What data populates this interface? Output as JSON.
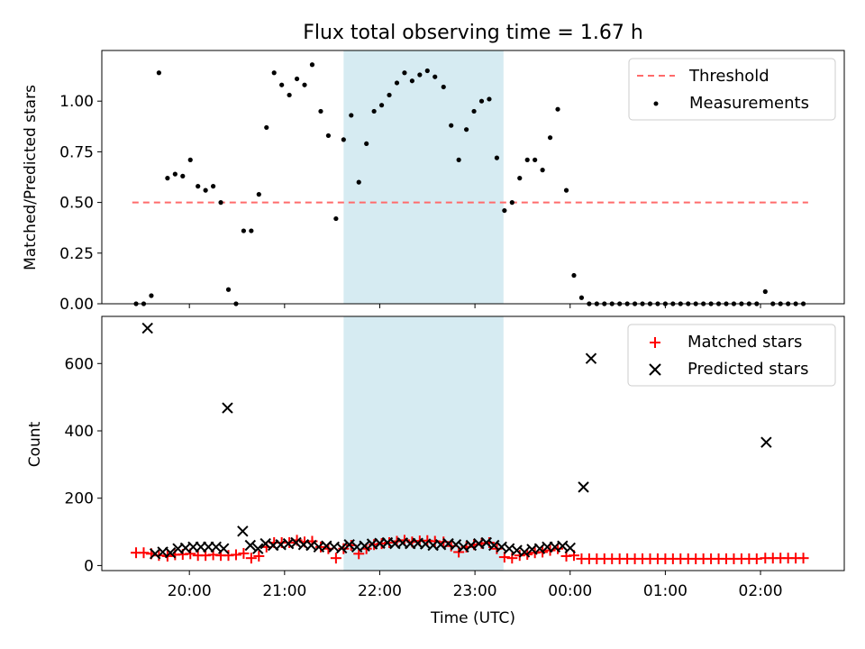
{
  "chart_data": [
    {
      "type": "scatter",
      "title": "Flux total observing time = 1.67 h",
      "xlabel": "",
      "ylabel": "Matched/Predicted stars",
      "xlim_hours": [
        19.08,
        26.88
      ],
      "ylim": [
        0,
        1.25
      ],
      "yticks": [
        0.0,
        0.25,
        0.5,
        0.75,
        1.0
      ],
      "ytick_labels": [
        "0.00",
        "0.25",
        "0.50",
        "0.75",
        "1.00"
      ],
      "shaded_interval": {
        "x0": 21.62,
        "x1": 23.3,
        "color": "#add8e6"
      },
      "threshold": {
        "name": "Threshold",
        "value": 0.5,
        "x_range": [
          19.4,
          26.5
        ],
        "color": "#ff6b6b"
      },
      "series": [
        {
          "name": "Measurements",
          "color": "#000000",
          "points": [
            [
              19.44,
              0.0
            ],
            [
              19.52,
              0.0
            ],
            [
              19.6,
              0.04
            ],
            [
              19.68,
              1.14
            ],
            [
              19.77,
              0.62
            ],
            [
              19.85,
              0.64
            ],
            [
              19.93,
              0.63
            ],
            [
              20.01,
              0.71
            ],
            [
              20.09,
              0.58
            ],
            [
              20.17,
              0.56
            ],
            [
              20.25,
              0.58
            ],
            [
              20.33,
              0.5
            ],
            [
              20.41,
              0.07
            ],
            [
              20.49,
              0.0
            ],
            [
              20.57,
              0.36
            ],
            [
              20.65,
              0.36
            ],
            [
              20.73,
              0.54
            ],
            [
              20.81,
              0.87
            ],
            [
              20.89,
              1.14
            ],
            [
              20.97,
              1.08
            ],
            [
              21.05,
              1.03
            ],
            [
              21.13,
              1.11
            ],
            [
              21.21,
              1.08
            ],
            [
              21.29,
              1.18
            ],
            [
              21.38,
              0.95
            ],
            [
              21.46,
              0.83
            ],
            [
              21.54,
              0.42
            ],
            [
              21.62,
              0.81
            ],
            [
              21.7,
              0.93
            ],
            [
              21.78,
              0.6
            ],
            [
              21.86,
              0.79
            ],
            [
              21.94,
              0.95
            ],
            [
              22.02,
              0.98
            ],
            [
              22.1,
              1.03
            ],
            [
              22.18,
              1.09
            ],
            [
              22.26,
              1.14
            ],
            [
              22.34,
              1.1
            ],
            [
              22.42,
              1.13
            ],
            [
              22.5,
              1.15
            ],
            [
              22.58,
              1.12
            ],
            [
              22.67,
              1.07
            ],
            [
              22.75,
              0.88
            ],
            [
              22.83,
              0.71
            ],
            [
              22.91,
              0.86
            ],
            [
              22.99,
              0.95
            ],
            [
              23.07,
              1.0
            ],
            [
              23.15,
              1.01
            ],
            [
              23.23,
              0.72
            ],
            [
              23.31,
              0.46
            ],
            [
              23.39,
              0.5
            ],
            [
              23.47,
              0.62
            ],
            [
              23.55,
              0.71
            ],
            [
              23.63,
              0.71
            ],
            [
              23.71,
              0.66
            ],
            [
              23.79,
              0.82
            ],
            [
              23.87,
              0.96
            ],
            [
              23.96,
              0.56
            ],
            [
              24.04,
              0.14
            ],
            [
              24.12,
              0.03
            ],
            [
              24.2,
              0.0
            ],
            [
              24.28,
              0.0
            ],
            [
              24.36,
              0.0
            ],
            [
              24.44,
              0.0
            ],
            [
              24.52,
              0.0
            ],
            [
              24.6,
              0.0
            ],
            [
              24.68,
              0.0
            ],
            [
              24.76,
              0.0
            ],
            [
              24.84,
              0.0
            ],
            [
              24.92,
              0.0
            ],
            [
              25.0,
              0.0
            ],
            [
              25.08,
              0.0
            ],
            [
              25.16,
              0.0
            ],
            [
              25.24,
              0.0
            ],
            [
              25.32,
              0.0
            ],
            [
              25.4,
              0.0
            ],
            [
              25.48,
              0.0
            ],
            [
              25.56,
              0.0
            ],
            [
              25.64,
              0.0
            ],
            [
              25.72,
              0.0
            ],
            [
              25.8,
              0.0
            ],
            [
              25.88,
              0.0
            ],
            [
              25.96,
              0.0
            ],
            [
              26.05,
              0.06
            ],
            [
              26.13,
              0.0
            ],
            [
              26.21,
              0.0
            ],
            [
              26.29,
              0.0
            ],
            [
              26.37,
              0.0
            ],
            [
              26.45,
              0.0
            ]
          ]
        }
      ],
      "legend": {
        "placement": "top-right",
        "entries": [
          "Threshold",
          "Measurements"
        ]
      }
    },
    {
      "type": "scatter",
      "title": "",
      "xlabel": "Time (UTC)",
      "ylabel": "Count",
      "xlim_hours": [
        19.08,
        26.88
      ],
      "ylim": [
        -15,
        740
      ],
      "yticks": [
        0,
        200,
        400,
        600
      ],
      "ytick_labels": [
        "0",
        "200",
        "400",
        "600"
      ],
      "xticks_hours": [
        20,
        21,
        22,
        23,
        24,
        25,
        26
      ],
      "xtick_labels": [
        "20:00",
        "21:00",
        "22:00",
        "23:00",
        "00:00",
        "01:00",
        "02:00"
      ],
      "shaded_interval": {
        "x0": 21.62,
        "x1": 23.3,
        "color": "#add8e6"
      },
      "series": [
        {
          "name": "Matched stars",
          "marker": "+",
          "color": "#ff0000",
          "points": [
            [
              19.44,
              38
            ],
            [
              19.52,
              38
            ],
            [
              19.6,
              35
            ],
            [
              19.68,
              30
            ],
            [
              19.77,
              28
            ],
            [
              19.85,
              32
            ],
            [
              19.93,
              33
            ],
            [
              20.01,
              35
            ],
            [
              20.09,
              30
            ],
            [
              20.17,
              30
            ],
            [
              20.25,
              32
            ],
            [
              20.33,
              30
            ],
            [
              20.41,
              30
            ],
            [
              20.49,
              32
            ],
            [
              20.57,
              36
            ],
            [
              20.65,
              22
            ],
            [
              20.73,
              28
            ],
            [
              20.81,
              55
            ],
            [
              20.89,
              68
            ],
            [
              20.97,
              68
            ],
            [
              21.05,
              68
            ],
            [
              21.13,
              75
            ],
            [
              21.21,
              70
            ],
            [
              21.29,
              72
            ],
            [
              21.38,
              55
            ],
            [
              21.46,
              50
            ],
            [
              21.54,
              22
            ],
            [
              21.62,
              50
            ],
            [
              21.7,
              60
            ],
            [
              21.78,
              35
            ],
            [
              21.86,
              50
            ],
            [
              21.94,
              62
            ],
            [
              22.02,
              65
            ],
            [
              22.1,
              68
            ],
            [
              22.18,
              72
            ],
            [
              22.26,
              75
            ],
            [
              22.34,
              70
            ],
            [
              22.42,
              73
            ],
            [
              22.5,
              74
            ],
            [
              22.58,
              72
            ],
            [
              22.67,
              70
            ],
            [
              22.75,
              58
            ],
            [
              22.83,
              40
            ],
            [
              22.91,
              55
            ],
            [
              22.99,
              62
            ],
            [
              23.07,
              66
            ],
            [
              23.15,
              68
            ],
            [
              23.23,
              50
            ],
            [
              23.31,
              25
            ],
            [
              23.39,
              22
            ],
            [
              23.47,
              30
            ],
            [
              23.55,
              33
            ],
            [
              23.63,
              38
            ],
            [
              23.71,
              40
            ],
            [
              23.79,
              45
            ],
            [
              23.87,
              50
            ],
            [
              23.96,
              28
            ],
            [
              24.04,
              30
            ],
            [
              24.12,
              20
            ],
            [
              24.2,
              20
            ],
            [
              24.28,
              20
            ],
            [
              24.36,
              20
            ],
            [
              24.44,
              20
            ],
            [
              24.52,
              20
            ],
            [
              24.6,
              20
            ],
            [
              24.68,
              20
            ],
            [
              24.76,
              20
            ],
            [
              24.84,
              20
            ],
            [
              24.92,
              20
            ],
            [
              25.0,
              20
            ],
            [
              25.08,
              20
            ],
            [
              25.16,
              20
            ],
            [
              25.24,
              20
            ],
            [
              25.32,
              20
            ],
            [
              25.4,
              20
            ],
            [
              25.48,
              20
            ],
            [
              25.56,
              20
            ],
            [
              25.64,
              20
            ],
            [
              25.72,
              20
            ],
            [
              25.8,
              20
            ],
            [
              25.88,
              20
            ],
            [
              25.96,
              20
            ],
            [
              26.05,
              22
            ],
            [
              26.13,
              22
            ],
            [
              26.21,
              22
            ],
            [
              26.29,
              22
            ],
            [
              26.37,
              22
            ],
            [
              26.45,
              22
            ]
          ]
        },
        {
          "name": "Predicted stars",
          "marker": "x",
          "color": "#000000",
          "points": [
            [
              19.56,
              705
            ],
            [
              19.64,
              35
            ],
            [
              19.72,
              40
            ],
            [
              19.8,
              38
            ],
            [
              19.88,
              50
            ],
            [
              19.96,
              52
            ],
            [
              20.04,
              55
            ],
            [
              20.12,
              55
            ],
            [
              20.2,
              55
            ],
            [
              20.28,
              55
            ],
            [
              20.36,
              50
            ],
            [
              20.4,
              468
            ],
            [
              20.56,
              102
            ],
            [
              20.64,
              60
            ],
            [
              20.72,
              50
            ],
            [
              20.8,
              65
            ],
            [
              20.88,
              60
            ],
            [
              20.96,
              62
            ],
            [
              21.04,
              65
            ],
            [
              21.12,
              68
            ],
            [
              21.2,
              62
            ],
            [
              21.28,
              60
            ],
            [
              21.36,
              55
            ],
            [
              21.44,
              58
            ],
            [
              21.52,
              55
            ],
            [
              21.6,
              52
            ],
            [
              21.68,
              62
            ],
            [
              21.76,
              55
            ],
            [
              21.84,
              58
            ],
            [
              21.92,
              64
            ],
            [
              22.0,
              66
            ],
            [
              22.08,
              68
            ],
            [
              22.16,
              65
            ],
            [
              22.24,
              67
            ],
            [
              22.32,
              65
            ],
            [
              22.4,
              66
            ],
            [
              22.48,
              64
            ],
            [
              22.56,
              60
            ],
            [
              22.64,
              62
            ],
            [
              22.72,
              65
            ],
            [
              22.8,
              62
            ],
            [
              22.88,
              55
            ],
            [
              22.96,
              60
            ],
            [
              23.04,
              65
            ],
            [
              23.12,
              68
            ],
            [
              23.2,
              60
            ],
            [
              23.28,
              55
            ],
            [
              23.36,
              50
            ],
            [
              23.44,
              45
            ],
            [
              23.52,
              40
            ],
            [
              23.6,
              48
            ],
            [
              23.68,
              50
            ],
            [
              23.76,
              55
            ],
            [
              23.84,
              55
            ],
            [
              23.92,
              58
            ],
            [
              24.0,
              52
            ],
            [
              24.14,
              233
            ],
            [
              24.22,
              615
            ],
            [
              26.06,
              366
            ]
          ]
        }
      ],
      "legend": {
        "placement": "top-right",
        "entries": [
          "Matched stars",
          "Predicted stars"
        ]
      }
    }
  ]
}
